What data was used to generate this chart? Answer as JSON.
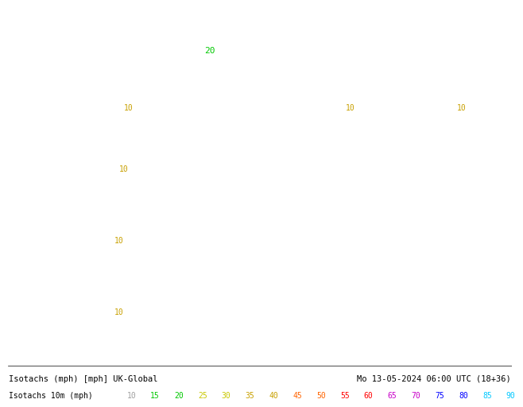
{
  "title_left": "Isotachs (mph) [mph] UK-Global",
  "title_right": "Mo 13-05-2024 06:00 UTC (18+36)",
  "legend_label": "Isotachs 10m (mph)",
  "legend_values": [
    10,
    15,
    20,
    25,
    30,
    35,
    40,
    45,
    50,
    55,
    60,
    65,
    70,
    75,
    80,
    85,
    90
  ],
  "legend_colors": [
    "#c8c8c8",
    "#00c800",
    "#00c800",
    "#c8c800",
    "#c8c800",
    "#c8a000",
    "#c8a000",
    "#ff6400",
    "#ff6400",
    "#ff0000",
    "#ff0000",
    "#c800c8",
    "#c800c8",
    "#0000ff",
    "#0000ff",
    "#00c8ff",
    "#00c8ff"
  ],
  "background_color": "#e8f5e8",
  "sea_color": "#e8eef8",
  "land_color": "#c8e8c8",
  "border_color": "#000000",
  "contour_colors": {
    "10": "#c8c8c8",
    "15": "#00c800",
    "20": "#00c800",
    "25": "#c8c800",
    "30": "#c8a000",
    "35": "#ff6400",
    "40": "#ff0000",
    "45": "#c800c8",
    "50": "#0000ff",
    "55": "#00c8ff"
  },
  "bottom_bar_height": 0.08,
  "font_size_title": 7.5,
  "font_size_legend": 7.0,
  "font_family": "monospace"
}
